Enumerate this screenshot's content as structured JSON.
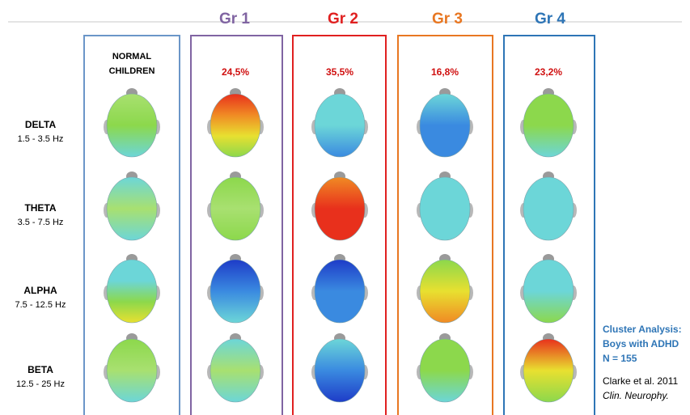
{
  "header": {
    "groups": [
      "Gr 1",
      "Gr 2",
      "Gr 3",
      "Gr 4"
    ]
  },
  "normal_label": [
    "NORMAL",
    "CHILDREN"
  ],
  "percentages": [
    "24,5%",
    "35,5%",
    "16,8%",
    "23,2%"
  ],
  "bands": [
    {
      "name": "DELTA",
      "range": "1.5 - 3.5 Hz"
    },
    {
      "name": "THETA",
      "range": "3.5 - 7.5 Hz"
    },
    {
      "name": "ALPHA",
      "range": "7.5 - 12.5 Hz"
    },
    {
      "name": "BETA",
      "range": "12.5 - 25 Hz"
    }
  ],
  "citation": {
    "study": [
      "Cluster Analysis:",
      "Boys with ADHD",
      "N = 155"
    ],
    "reference": "Clarke et al. 2011",
    "journal": "Clin. Neurophy."
  }
}
